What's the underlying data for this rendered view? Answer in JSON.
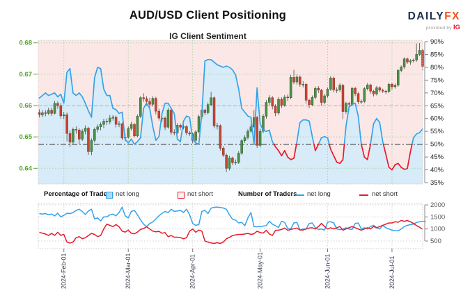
{
  "header": {
    "title": "AUD/USD Client Positioning",
    "subtitle": "IG Client Sentiment",
    "logo": {
      "daily": "DAILY",
      "fx": "FX",
      "provided_by": "provided by",
      "ig": "IG"
    }
  },
  "legend": {
    "pct_label": "Percentage of Traders",
    "num_label": "Number of Traders",
    "long_label": "net long",
    "short_label": "net short"
  },
  "colors": {
    "pink_fill": "#fbe8e6",
    "blue_fill": "#d7ebf8",
    "long_line": "#36a2e8",
    "short_line": "#e51b2c",
    "candle_up": "#4c8f47",
    "candle_up_edge": "#2e5e2a",
    "candle_down": "#c24734",
    "candle_down_edge": "#8e2f22",
    "wick": "#4a4a4a",
    "price_label": "#55a032",
    "grid_green": "#a9d3a4",
    "pct_label_color": "#222222",
    "gray_dashed": "#b3b3b3",
    "dashdot": "#4d4d4d",
    "count_grid": "#cfcfcf",
    "count_label": "#555555",
    "date_label": "#3a4150",
    "plot_border": "#c9c9c9"
  },
  "chart_data": {
    "type": "candlestick+line+line",
    "title": "AUD/USD Client Positioning",
    "subtitle": "IG Client Sentiment",
    "x_ticks": [
      {
        "label": "2024-Feb-01",
        "index": 8
      },
      {
        "label": "2024-Mar-01",
        "index": 29
      },
      {
        "label": "2024-Apr-01",
        "index": 50
      },
      {
        "label": "2024-May-01",
        "index": 72
      },
      {
        "label": "2024-Jun-01",
        "index": 94
      },
      {
        "label": "2024-Jul-01",
        "index": 115
      }
    ],
    "main": {
      "price_axis": {
        "side": "left",
        "ticks": [
          0.64,
          0.65,
          0.66,
          0.67,
          0.68
        ]
      },
      "pct_axis": {
        "side": "right",
        "ticks": [
          35,
          40,
          45,
          50,
          55,
          60,
          65,
          70,
          75,
          80,
          85,
          90
        ],
        "suffix": "%"
      },
      "hlines": [
        {
          "value": 65,
          "style": "dashed",
          "meaning": "sentiment reference"
        },
        {
          "value": 50,
          "style": "dashdot",
          "meaning": "50% long/short split"
        }
      ],
      "sentiment_net_long_pct": [
        68,
        69,
        70,
        69,
        69.5,
        70,
        68.5,
        69.5,
        66,
        78,
        79.5,
        70,
        69,
        70,
        68.5,
        66,
        63,
        60.5,
        76,
        80,
        79.5,
        71.5,
        69,
        69,
        64,
        63.5,
        62,
        62.5,
        52,
        50.5,
        52,
        50,
        51,
        52.5,
        64,
        66,
        64,
        57,
        51.5,
        53,
        62,
        66,
        66,
        64,
        62,
        52,
        51,
        59,
        61,
        60.5,
        52,
        50.5,
        50,
        62,
        82.5,
        83,
        83,
        82,
        81,
        80.5,
        80,
        80.5,
        80,
        79,
        77,
        71.5,
        64,
        62.5,
        61,
        60.5,
        50,
        72,
        58,
        55.5,
        55,
        55.5,
        51,
        49,
        47.5,
        45.5,
        47.5,
        45,
        44,
        44.5,
        51,
        58.5,
        59.5,
        59.5,
        59,
        53,
        47.5,
        50,
        52.5,
        53,
        52.5,
        48,
        45.5,
        43,
        42.5,
        44,
        57,
        64.5,
        65.5,
        66,
        61,
        50,
        45,
        44,
        50,
        58,
        60,
        58.5,
        51,
        46,
        41,
        40,
        42,
        42.5,
        41,
        40.2,
        40.5,
        47,
        52.5,
        54,
        54.5,
        56
      ],
      "candles_ohlc": [
        [
          0.6578,
          0.6588,
          0.6562,
          0.657
        ],
        [
          0.657,
          0.6585,
          0.6563,
          0.6577
        ],
        [
          0.6577,
          0.6585,
          0.6566,
          0.6575
        ],
        [
          0.6575,
          0.6593,
          0.657,
          0.6585
        ],
        [
          0.6585,
          0.6593,
          0.6567,
          0.6575
        ],
        [
          0.6575,
          0.6615,
          0.6572,
          0.6607
        ],
        [
          0.6607,
          0.6613,
          0.659,
          0.66
        ],
        [
          0.66,
          0.6608,
          0.6558,
          0.6567
        ],
        [
          0.6567,
          0.658,
          0.6557,
          0.6571
        ],
        [
          0.6571,
          0.6578,
          0.6486,
          0.6511
        ],
        [
          0.6511,
          0.6521,
          0.6468,
          0.6483
        ],
        [
          0.6483,
          0.653,
          0.6477,
          0.6524
        ],
        [
          0.6524,
          0.6534,
          0.651,
          0.6522
        ],
        [
          0.6522,
          0.6528,
          0.6478,
          0.6493
        ],
        [
          0.6493,
          0.6525,
          0.6487,
          0.6518
        ],
        [
          0.6518,
          0.6537,
          0.6508,
          0.6528
        ],
        [
          0.6528,
          0.6532,
          0.6443,
          0.6453
        ],
        [
          0.6453,
          0.6495,
          0.6442,
          0.6489
        ],
        [
          0.6489,
          0.653,
          0.6482,
          0.6524
        ],
        [
          0.6524,
          0.654,
          0.6515,
          0.6532
        ],
        [
          0.6532,
          0.6546,
          0.6521,
          0.654
        ],
        [
          0.654,
          0.6558,
          0.6528,
          0.655
        ],
        [
          0.655,
          0.6559,
          0.6538,
          0.6548
        ],
        [
          0.6548,
          0.657,
          0.654,
          0.656
        ],
        [
          0.656,
          0.657,
          0.6552,
          0.6563
        ],
        [
          0.6563,
          0.6568,
          0.653,
          0.654
        ],
        [
          0.654,
          0.6551,
          0.6531,
          0.6542
        ],
        [
          0.6542,
          0.6546,
          0.649,
          0.6496
        ],
        [
          0.6496,
          0.651,
          0.6486,
          0.6499
        ],
        [
          0.6499,
          0.6534,
          0.6494,
          0.6527
        ],
        [
          0.6527,
          0.6548,
          0.652,
          0.654
        ],
        [
          0.654,
          0.6544,
          0.6498,
          0.6503
        ],
        [
          0.6503,
          0.6572,
          0.6499,
          0.6566
        ],
        [
          0.6566,
          0.663,
          0.656,
          0.6625
        ],
        [
          0.6625,
          0.6639,
          0.6612,
          0.6622
        ],
        [
          0.6622,
          0.663,
          0.6601,
          0.6613
        ],
        [
          0.6613,
          0.6625,
          0.6595,
          0.6604
        ],
        [
          0.6604,
          0.663,
          0.6597,
          0.6623
        ],
        [
          0.6623,
          0.6628,
          0.6572,
          0.6582
        ],
        [
          0.6582,
          0.659,
          0.6552,
          0.656
        ],
        [
          0.656,
          0.657,
          0.6548,
          0.656
        ],
        [
          0.656,
          0.6565,
          0.6522,
          0.6531
        ],
        [
          0.6531,
          0.6593,
          0.6526,
          0.6586
        ],
        [
          0.6586,
          0.659,
          0.6507,
          0.6515
        ],
        [
          0.6515,
          0.6524,
          0.6505,
          0.6514
        ],
        [
          0.6514,
          0.6544,
          0.6509,
          0.6537
        ],
        [
          0.6537,
          0.6543,
          0.6522,
          0.6531
        ],
        [
          0.6531,
          0.654,
          0.6524,
          0.6533
        ],
        [
          0.6533,
          0.6537,
          0.6505,
          0.6513
        ],
        [
          0.6513,
          0.6518,
          0.6503,
          0.651
        ],
        [
          0.651,
          0.6514,
          0.648,
          0.6489
        ],
        [
          0.6489,
          0.6522,
          0.6484,
          0.6516
        ],
        [
          0.6516,
          0.6571,
          0.6512,
          0.6565
        ],
        [
          0.6565,
          0.6593,
          0.6558,
          0.6586
        ],
        [
          0.6586,
          0.659,
          0.6569,
          0.6577
        ],
        [
          0.6577,
          0.661,
          0.6572,
          0.6603
        ],
        [
          0.6603,
          0.6644,
          0.6598,
          0.6625
        ],
        [
          0.6625,
          0.6629,
          0.6528,
          0.6535
        ],
        [
          0.6535,
          0.6545,
          0.6524,
          0.6536
        ],
        [
          0.6536,
          0.654,
          0.6456,
          0.6464
        ],
        [
          0.6464,
          0.647,
          0.6436,
          0.6442
        ],
        [
          0.6442,
          0.6447,
          0.6388,
          0.64
        ],
        [
          0.64,
          0.644,
          0.6393,
          0.6433
        ],
        [
          0.6433,
          0.6437,
          0.641,
          0.6418
        ],
        [
          0.6418,
          0.6428,
          0.6411,
          0.6419
        ],
        [
          0.6419,
          0.6455,
          0.6414,
          0.6448
        ],
        [
          0.6448,
          0.6493,
          0.6443,
          0.6488
        ],
        [
          0.6488,
          0.6505,
          0.6481,
          0.6498
        ],
        [
          0.6498,
          0.6525,
          0.6492,
          0.6518
        ],
        [
          0.6518,
          0.654,
          0.6512,
          0.6532
        ],
        [
          0.6532,
          0.6586,
          0.6528,
          0.6562
        ],
        [
          0.6562,
          0.6567,
          0.6465,
          0.6473
        ],
        [
          0.6473,
          0.6527,
          0.6466,
          0.6518
        ],
        [
          0.6518,
          0.6573,
          0.6512,
          0.6566
        ],
        [
          0.6566,
          0.6618,
          0.6558,
          0.661
        ],
        [
          0.661,
          0.6633,
          0.6602,
          0.6625
        ],
        [
          0.6625,
          0.663,
          0.6588,
          0.6598
        ],
        [
          0.6598,
          0.6604,
          0.6566,
          0.6576
        ],
        [
          0.6576,
          0.6627,
          0.657,
          0.662
        ],
        [
          0.662,
          0.6626,
          0.6592,
          0.6601
        ],
        [
          0.6601,
          0.6634,
          0.6596,
          0.6627
        ],
        [
          0.6627,
          0.6636,
          0.6614,
          0.6625
        ],
        [
          0.6625,
          0.6698,
          0.662,
          0.669
        ],
        [
          0.669,
          0.6714,
          0.6668,
          0.6675
        ],
        [
          0.6675,
          0.6699,
          0.6666,
          0.6691
        ],
        [
          0.6691,
          0.6696,
          0.666,
          0.6668
        ],
        [
          0.6668,
          0.6678,
          0.6658,
          0.6668
        ],
        [
          0.6668,
          0.6672,
          0.6606,
          0.6617
        ],
        [
          0.6617,
          0.6622,
          0.6592,
          0.6603
        ],
        [
          0.6603,
          0.6632,
          0.6598,
          0.6626
        ],
        [
          0.6626,
          0.6661,
          0.662,
          0.6655
        ],
        [
          0.6655,
          0.6662,
          0.664,
          0.6649
        ],
        [
          0.6649,
          0.6653,
          0.66,
          0.661
        ],
        [
          0.661,
          0.6637,
          0.6604,
          0.6631
        ],
        [
          0.6631,
          0.6658,
          0.6625,
          0.6652
        ],
        [
          0.6652,
          0.6694,
          0.6647,
          0.6688
        ],
        [
          0.6688,
          0.6692,
          0.6642,
          0.665
        ],
        [
          0.665,
          0.6658,
          0.664,
          0.665
        ],
        [
          0.665,
          0.6671,
          0.6644,
          0.6665
        ],
        [
          0.6665,
          0.6669,
          0.6557,
          0.6581
        ],
        [
          0.6581,
          0.6612,
          0.6574,
          0.6607
        ],
        [
          0.6607,
          0.6612,
          0.6592,
          0.6604
        ],
        [
          0.6604,
          0.666,
          0.6598,
          0.6655
        ],
        [
          0.6655,
          0.666,
          0.663,
          0.6638
        ],
        [
          0.6638,
          0.6643,
          0.6605,
          0.6612
        ],
        [
          0.6612,
          0.662,
          0.6605,
          0.6613
        ],
        [
          0.6613,
          0.6659,
          0.6608,
          0.6654
        ],
        [
          0.6654,
          0.6672,
          0.6648,
          0.6666
        ],
        [
          0.6666,
          0.667,
          0.6638,
          0.6646
        ],
        [
          0.6646,
          0.665,
          0.6629,
          0.6637
        ],
        [
          0.6637,
          0.6662,
          0.6632,
          0.6657
        ],
        [
          0.6657,
          0.6661,
          0.6642,
          0.6649
        ],
        [
          0.6649,
          0.6654,
          0.664,
          0.6646
        ],
        [
          0.6646,
          0.665,
          0.6637,
          0.6645
        ],
        [
          0.6645,
          0.6673,
          0.664,
          0.6668
        ],
        [
          0.6668,
          0.6672,
          0.6651,
          0.666
        ],
        [
          0.666,
          0.667,
          0.6654,
          0.6665
        ],
        [
          0.6665,
          0.6717,
          0.666,
          0.6712
        ],
        [
          0.6712,
          0.6728,
          0.6706,
          0.6723
        ],
        [
          0.6723,
          0.6754,
          0.6717,
          0.6749
        ],
        [
          0.6749,
          0.6753,
          0.6733,
          0.6739
        ],
        [
          0.6739,
          0.6748,
          0.673,
          0.6743
        ],
        [
          0.6743,
          0.675,
          0.6737,
          0.6745
        ],
        [
          0.6745,
          0.6798,
          0.674,
          0.6763
        ],
        [
          0.6763,
          0.6799,
          0.6758,
          0.6776
        ],
        [
          0.6776,
          0.678,
          0.6713,
          0.6725
        ]
      ]
    },
    "bottom": {
      "count_axis": {
        "side": "right",
        "ticks": [
          500,
          1000,
          1500,
          2000
        ]
      },
      "net_long_count": [
        1640,
        1620,
        1640,
        1590,
        1620,
        1545,
        1655,
        1500,
        1565,
        1655,
        1640,
        1680,
        1770,
        1820,
        1727,
        1600,
        1745,
        1818,
        1420,
        1455,
        1330,
        1500,
        1500,
        1590,
        1620,
        1545,
        1682,
        1909,
        1550,
        1455,
        1727,
        1773,
        1591,
        1380,
        1200,
        1091,
        1227,
        1290,
        1420,
        1545,
        1650,
        1727,
        1680,
        1818,
        1730,
        1750,
        1773,
        1682,
        1818,
        1591,
        1227,
        1150,
        1182,
        1730,
        1773,
        1640,
        1864,
        1900,
        1910,
        1890,
        1870,
        1818,
        1591,
        1400,
        1364,
        1250,
        1273,
        1136,
        1455,
        1682,
        1100,
        1091,
        1100,
        1120,
        1135,
        1318,
        1200,
        1136,
        1060,
        1318,
        1273,
        1020,
        1000,
        1250,
        1273,
        955,
        1000,
        1000,
        1230,
        1250,
        1050,
        980,
        1000,
        950,
        1280,
        1300,
        1250,
        1000,
        970,
        1000,
        1050,
        1000,
        980,
        1230,
        1250,
        1000,
        1050,
        1000,
        1100,
        1150,
        1050,
        1000,
        1150,
        1050,
        1000,
        950,
        930,
        920,
        1000,
        1100,
        1150,
        1180,
        1200,
        1270,
        1300,
        1320,
        1320
      ],
      "net_short_count": [
        864,
        820,
        790,
        730,
        818,
        730,
        864,
        730,
        773,
        455,
        410,
        455,
        636,
        682,
        591,
        636,
        727,
        818,
        773,
        682,
        727,
        1000,
        1200,
        1150,
        1100,
        1180,
        1090,
        909,
        870,
        955,
        820,
        800,
        870,
        980,
        1020,
        1091,
        1000,
        909,
        880,
        900,
        820,
        850,
        680,
        727,
        660,
        660,
        640,
        591,
        636,
        909,
        1000,
        864,
        955,
        909,
        500,
        455,
        420,
        400,
        430,
        400,
        455,
        591,
        650,
        727,
        750,
        773,
        773,
        790,
        818,
        773,
        800,
        909,
        850,
        830,
        940,
        790,
        730,
        940,
        950,
        980,
        1040,
        940,
        980,
        1010,
        1040,
        960,
        955,
        1000,
        1040,
        1050,
        1000,
        1100,
        1230,
        1100,
        1000,
        1050,
        1000,
        1050,
        1100,
        950,
        1000,
        1050,
        1100,
        1050,
        1000,
        950,
        1000,
        1050,
        1000,
        1100,
        1050,
        1100,
        1150,
        1200,
        1250,
        1250,
        1300,
        1280,
        1350,
        1320,
        1350,
        1300,
        1230,
        1140,
        1070,
        990
      ]
    }
  }
}
